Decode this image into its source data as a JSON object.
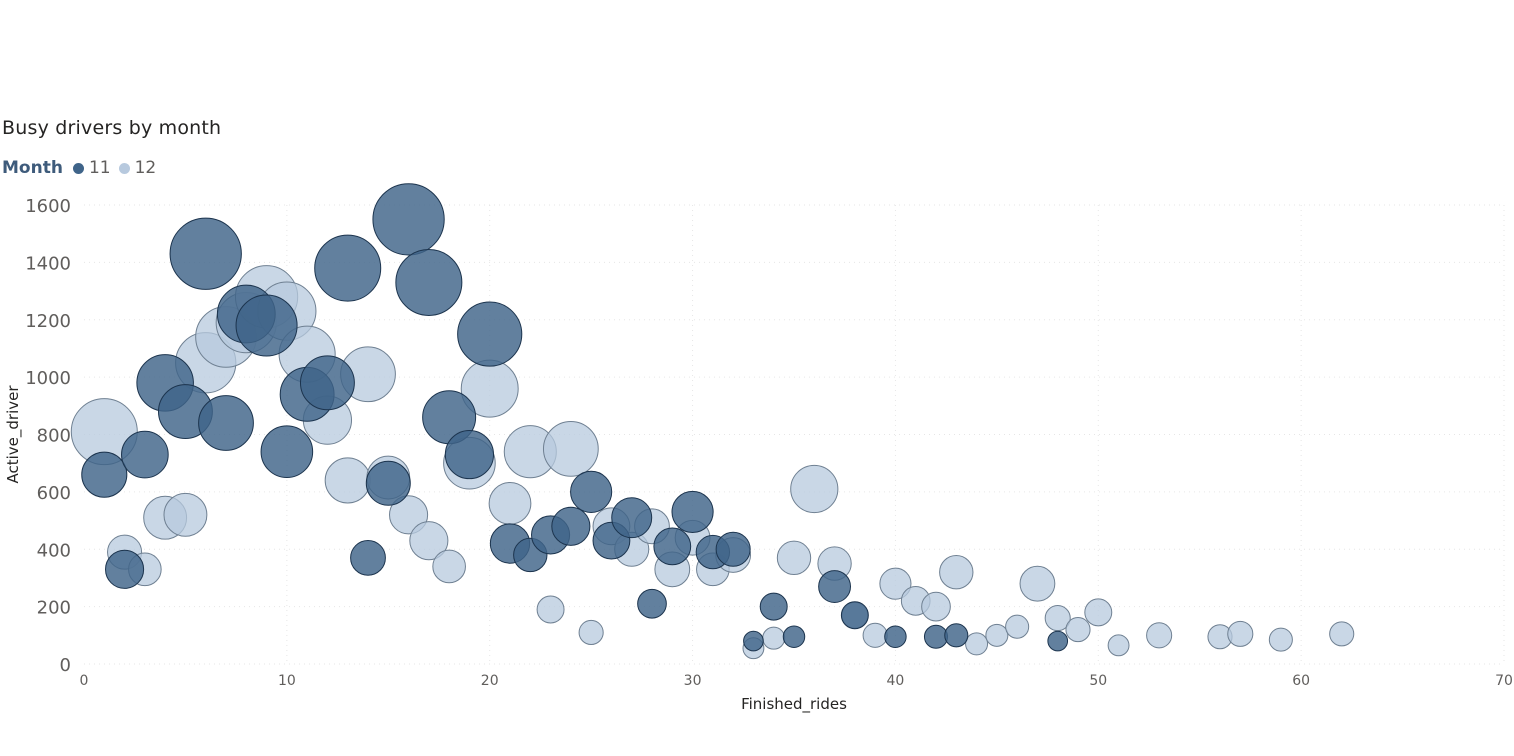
{
  "chart_data": {
    "type": "scatter",
    "title": "Busy drivers by month",
    "xlabel": "Finished_rides",
    "ylabel": "Active_driver",
    "xlim": [
      0,
      70
    ],
    "ylim": [
      0,
      1600
    ],
    "x_ticks": [
      "0",
      "10",
      "20",
      "30",
      "40",
      "50",
      "60",
      "70"
    ],
    "y_ticks": [
      "0",
      "200",
      "400",
      "600",
      "800",
      "1000",
      "1200",
      "1400",
      "1600"
    ],
    "grid": true,
    "legend_title": "Month",
    "legend_position": "top-left",
    "series": [
      {
        "name": "12",
        "color": "#b7c9de",
        "stroke": "#6f8092",
        "points": [
          [
            1,
            810
          ],
          [
            2,
            390
          ],
          [
            3,
            330
          ],
          [
            4,
            510
          ],
          [
            5,
            520
          ],
          [
            6,
            1050
          ],
          [
            7,
            1140
          ],
          [
            8,
            1190
          ],
          [
            9,
            1280
          ],
          [
            10,
            1230
          ],
          [
            11,
            1080
          ],
          [
            12,
            850
          ],
          [
            13,
            640
          ],
          [
            14,
            1010
          ],
          [
            15,
            650
          ],
          [
            16,
            520
          ],
          [
            17,
            430
          ],
          [
            18,
            340
          ],
          [
            19,
            700
          ],
          [
            20,
            960
          ],
          [
            21,
            560
          ],
          [
            22,
            740
          ],
          [
            23,
            190
          ],
          [
            24,
            750
          ],
          [
            25,
            110
          ],
          [
            26,
            480
          ],
          [
            27,
            400
          ],
          [
            28,
            480
          ],
          [
            29,
            330
          ],
          [
            30,
            440
          ],
          [
            31,
            330
          ],
          [
            32,
            380
          ],
          [
            33,
            55
          ],
          [
            34,
            90
          ],
          [
            35,
            370
          ],
          [
            36,
            610
          ],
          [
            37,
            350
          ],
          [
            38,
            170
          ],
          [
            39,
            100
          ],
          [
            40,
            280
          ],
          [
            41,
            220
          ],
          [
            42,
            200
          ],
          [
            43,
            320
          ],
          [
            44,
            70
          ],
          [
            45,
            100
          ],
          [
            46,
            130
          ],
          [
            47,
            280
          ],
          [
            48,
            160
          ],
          [
            49,
            120
          ],
          [
            50,
            180
          ],
          [
            51,
            65
          ],
          [
            53,
            100
          ],
          [
            56,
            95
          ],
          [
            57,
            105
          ],
          [
            59,
            85
          ],
          [
            62,
            105
          ]
        ],
        "sizes": [
          900,
          240,
          220,
          380,
          380,
          750,
          760,
          750,
          800,
          700,
          650,
          480,
          420,
          620,
          380,
          300,
          300,
          220,
          550,
          670,
          360,
          560,
          150,
          620,
          120,
          280,
          240,
          250,
          250,
          250,
          220,
          250,
          90,
          100,
          230,
          460,
          230,
          140,
          120,
          200,
          170,
          170,
          230,
          100,
          100,
          110,
          250,
          130,
          120,
          150,
          90,
          130,
          120,
          130,
          110,
          120
        ]
      },
      {
        "name": "11",
        "color": "#3f6489",
        "stroke": "#1c344e",
        "points": [
          [
            1,
            660
          ],
          [
            2,
            330
          ],
          [
            3,
            730
          ],
          [
            4,
            980
          ],
          [
            5,
            880
          ],
          [
            6,
            1430
          ],
          [
            7,
            840
          ],
          [
            8,
            1220
          ],
          [
            9,
            1180
          ],
          [
            10,
            740
          ],
          [
            11,
            940
          ],
          [
            12,
            980
          ],
          [
            13,
            1380
          ],
          [
            14,
            370
          ],
          [
            15,
            630
          ],
          [
            16,
            1550
          ],
          [
            17,
            1330
          ],
          [
            18,
            860
          ],
          [
            19,
            730
          ],
          [
            20,
            1150
          ],
          [
            21,
            420
          ],
          [
            22,
            380
          ],
          [
            23,
            450
          ],
          [
            24,
            480
          ],
          [
            25,
            600
          ],
          [
            26,
            430
          ],
          [
            27,
            510
          ],
          [
            28,
            210
          ],
          [
            29,
            410
          ],
          [
            30,
            530
          ],
          [
            31,
            390
          ],
          [
            32,
            400
          ],
          [
            33,
            80
          ],
          [
            34,
            200
          ],
          [
            35,
            95
          ],
          [
            37,
            270
          ],
          [
            38,
            170
          ],
          [
            40,
            95
          ],
          [
            42,
            95
          ],
          [
            43,
            100
          ],
          [
            48,
            80
          ]
        ],
        "sizes": [
          420,
          300,
          450,
          660,
          600,
          1050,
          620,
          690,
          770,
          550,
          600,
          600,
          900,
          250,
          400,
          1050,
          900,
          580,
          480,
          850,
          320,
          230,
          300,
          300,
          350,
          280,
          330,
          170,
          280,
          350,
          230,
          240,
          80,
          150,
          95,
          210,
          150,
          95,
          110,
          110,
          80
        ]
      }
    ]
  }
}
